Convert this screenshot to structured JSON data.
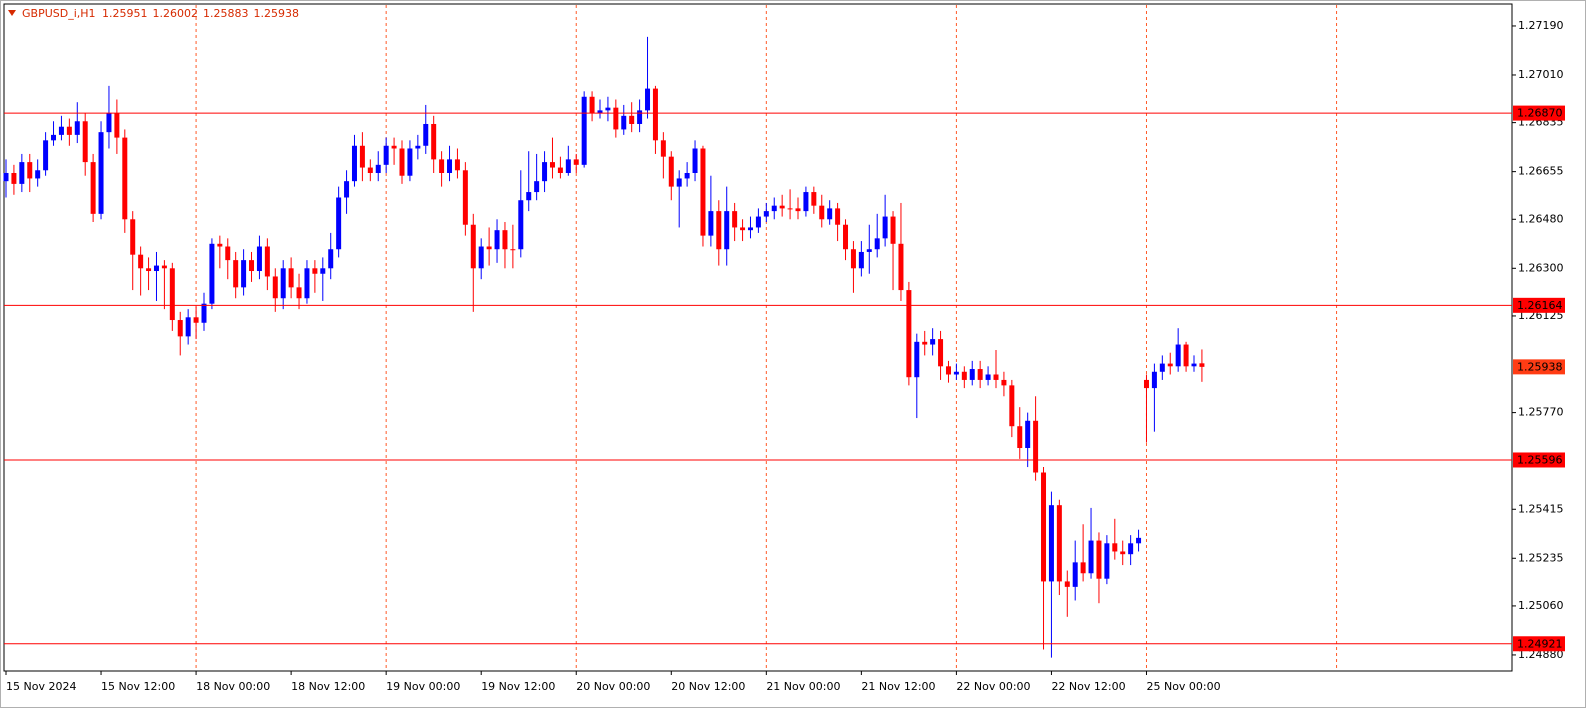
{
  "chart_data": {
    "type": "candlestick",
    "title": "GBPUSD_i,H1",
    "categories": [
      "15 Nov 2024",
      null,
      null,
      null,
      null,
      null,
      null,
      null,
      null,
      null,
      null,
      null,
      "15 Nov 12:00",
      null,
      null,
      null,
      null,
      null,
      null,
      null,
      null,
      null,
      null,
      null,
      "18 Nov 00:00",
      null,
      null,
      null,
      null,
      null,
      null,
      null,
      null,
      null,
      null,
      null,
      "18 Nov 12:00",
      null,
      null,
      null,
      null,
      null,
      null,
      null,
      null,
      null,
      null,
      null,
      "19 Nov 00:00",
      null,
      null,
      null,
      null,
      null,
      null,
      null,
      null,
      null,
      null,
      null,
      "19 Nov 12:00",
      null,
      null,
      null,
      null,
      null,
      null,
      null,
      null,
      null,
      null,
      null,
      "20 Nov 00:00",
      null,
      null,
      null,
      null,
      null,
      null,
      null,
      null,
      null,
      null,
      null,
      "20 Nov 12:00",
      null,
      null,
      null,
      null,
      null,
      null,
      null,
      null,
      null,
      null,
      null,
      "21 Nov 00:00",
      null,
      null,
      null,
      null,
      null,
      null,
      null,
      null,
      null,
      null,
      null,
      "21 Nov 12:00",
      null,
      null,
      null,
      null,
      null,
      null,
      null,
      null,
      null,
      null,
      null,
      "22 Nov 00:00",
      null,
      null,
      null,
      null,
      null,
      null,
      null,
      null,
      null,
      null,
      null,
      "22 Nov 12:00",
      null,
      null,
      null,
      null,
      null,
      null,
      null,
      null,
      null,
      null,
      null,
      "25 Nov 00:00",
      null,
      null,
      null,
      null,
      null,
      null,
      null
    ],
    "open": [
      1.2662,
      1.2665,
      1.2661,
      1.2669,
      1.2663,
      1.2666,
      1.2677,
      1.2679,
      1.2682,
      1.2679,
      1.2684,
      1.2669,
      1.265,
      1.268,
      1.2687,
      1.2678,
      1.2648,
      1.2635,
      1.263,
      1.2629,
      1.2631,
      1.263,
      1.2611,
      1.2605,
      1.2612,
      1.261,
      1.2617,
      1.2639,
      1.2638,
      1.2633,
      1.2623,
      1.2633,
      1.2629,
      1.2638,
      1.2627,
      1.2619,
      1.263,
      1.2623,
      1.2619,
      1.263,
      1.2628,
      1.263,
      1.2637,
      1.2656,
      1.2662,
      1.2675,
      1.2667,
      1.2665,
      1.2668,
      1.2675,
      1.2674,
      1.2664,
      1.2674,
      1.2675,
      1.2683,
      1.267,
      1.2665,
      1.267,
      1.2666,
      1.2646,
      1.263,
      1.2638,
      1.2637,
      1.2644,
      1.2637,
      1.2637,
      1.2655,
      1.2658,
      1.2662,
      1.2669,
      1.2667,
      1.2665,
      1.267,
      1.2668,
      1.2693,
      1.2687,
      1.2688,
      1.2689,
      1.2681,
      1.2686,
      1.2683,
      1.2688,
      1.2696,
      1.2677,
      1.2671,
      1.266,
      1.2663,
      1.2665,
      1.2674,
      1.2642,
      1.2651,
      1.2637,
      1.2651,
      1.2645,
      1.2644,
      1.2645,
      1.2649,
      1.2651,
      1.2653,
      1.2652,
      1.2652,
      1.2651,
      1.2658,
      1.2653,
      1.2648,
      1.2652,
      1.2646,
      1.2637,
      1.263,
      1.2636,
      1.2637,
      1.2641,
      1.2649,
      1.2639,
      1.2622,
      1.259,
      1.2603,
      1.2602,
      1.2604,
      1.2594,
      1.2591,
      1.2592,
      1.2589,
      1.2593,
      1.2589,
      1.2591,
      1.2589,
      1.2587,
      1.2572,
      1.2564,
      1.2574,
      1.2555,
      1.2515,
      1.2543,
      1.2515,
      1.2513,
      1.2522,
      1.2518,
      1.253,
      1.2516,
      1.2529,
      1.2526,
      1.2525,
      1.2529,
      1.2589,
      1.2586,
      1.2592,
      1.2595,
      1.2594,
      1.2602,
      1.2594,
      1.25951
    ],
    "high": [
      1.267,
      1.2668,
      1.2672,
      1.2672,
      1.267,
      1.268,
      1.2684,
      1.2686,
      1.2685,
      1.2691,
      1.2687,
      1.2672,
      1.2684,
      1.2697,
      1.2692,
      1.2681,
      1.2651,
      1.2638,
      1.2634,
      1.2636,
      1.2633,
      1.2632,
      1.2614,
      1.2615,
      1.2616,
      1.2621,
      1.2641,
      1.2642,
      1.2641,
      1.2636,
      1.2637,
      1.2636,
      1.2642,
      1.2641,
      1.263,
      1.2633,
      1.2634,
      1.2628,
      1.2633,
      1.2633,
      1.2634,
      1.2643,
      1.266,
      1.2666,
      1.2679,
      1.268,
      1.267,
      1.2673,
      1.2678,
      1.2678,
      1.2677,
      1.2677,
      1.2679,
      1.269,
      1.2686,
      1.2673,
      1.2675,
      1.2674,
      1.2669,
      1.265,
      1.2641,
      1.2645,
      1.2648,
      1.2647,
      1.2646,
      1.2666,
      1.2673,
      1.2672,
      1.2673,
      1.2678,
      1.2671,
      1.2675,
      1.2672,
      1.2695,
      1.2695,
      1.2692,
      1.2693,
      1.2692,
      1.269,
      1.2691,
      1.2692,
      1.2715,
      1.2697,
      1.268,
      1.2673,
      1.2666,
      1.2669,
      1.2677,
      1.2675,
      1.2664,
      1.2655,
      1.266,
      1.2654,
      1.2648,
      1.2649,
      1.2652,
      1.2654,
      1.2656,
      1.2657,
      1.2659,
      1.2656,
      1.266,
      1.266,
      1.2657,
      1.2655,
      1.2654,
      1.2648,
      1.264,
      1.264,
      1.2646,
      1.265,
      1.2657,
      1.2651,
      1.2654,
      1.2625,
      1.2606,
      1.2607,
      1.2608,
      1.2607,
      1.2596,
      1.2595,
      1.2594,
      1.2596,
      1.2596,
      1.2594,
      1.26,
      1.2592,
      1.2589,
      1.2579,
      1.2577,
      1.2583,
      1.2557,
      1.2548,
      1.2545,
      1.2519,
      1.253,
      1.2536,
      1.2542,
      1.2533,
      1.2532,
      1.2538,
      1.253,
      1.2532,
      1.2534,
      1.2591,
      1.2595,
      1.2598,
      1.2599,
      1.2608,
      1.2603,
      1.2598,
      1.26002
    ],
    "low": [
      1.2656,
      1.2657,
      1.2658,
      1.2658,
      1.266,
      1.2664,
      1.2675,
      1.2677,
      1.2675,
      1.2676,
      1.2664,
      1.2647,
      1.2648,
      1.2674,
      1.2672,
      1.2643,
      1.2622,
      1.262,
      1.2622,
      1.2618,
      1.2615,
      1.2607,
      1.2598,
      1.2602,
      1.2604,
      1.2607,
      1.2615,
      1.263,
      1.2626,
      1.2619,
      1.262,
      1.2625,
      1.2626,
      1.2622,
      1.2614,
      1.2615,
      1.2619,
      1.2615,
      1.2617,
      1.2621,
      1.2618,
      1.2626,
      1.2634,
      1.265,
      1.266,
      1.2662,
      1.2662,
      1.2662,
      1.2665,
      1.2668,
      1.2661,
      1.2662,
      1.267,
      1.2672,
      1.2665,
      1.266,
      1.2662,
      1.2663,
      1.2642,
      1.2614,
      1.2626,
      1.2631,
      1.2632,
      1.263,
      1.263,
      1.2634,
      1.2651,
      1.2655,
      1.2658,
      1.2663,
      1.2663,
      1.2664,
      1.2665,
      1.2667,
      1.2684,
      1.2685,
      1.2684,
      1.2678,
      1.2679,
      1.268,
      1.268,
      1.2685,
      1.2672,
      1.2663,
      1.2655,
      1.2645,
      1.266,
      1.2662,
      1.2638,
      1.2638,
      1.2631,
      1.2631,
      1.264,
      1.264,
      1.2641,
      1.2643,
      1.2647,
      1.2648,
      1.2649,
      1.2648,
      1.2648,
      1.2649,
      1.265,
      1.2645,
      1.2646,
      1.264,
      1.2633,
      1.2621,
      1.2627,
      1.2628,
      1.2634,
      1.2638,
      1.2622,
      1.2618,
      1.2587,
      1.2575,
      1.2598,
      1.2598,
      1.2589,
      1.2588,
      1.2589,
      1.2586,
      1.2587,
      1.2586,
      1.2587,
      1.2586,
      1.2583,
      1.2568,
      1.256,
      1.2557,
      1.2552,
      1.249,
      1.2487,
      1.251,
      1.2502,
      1.2508,
      1.2515,
      1.2516,
      1.2507,
      1.2514,
      1.2523,
      1.2521,
      1.2521,
      1.2526,
      1.2566,
      1.257,
      1.2589,
      1.2591,
      1.2592,
      1.2592,
      1.2592,
      1.25883
    ],
    "close": [
      1.2665,
      1.2661,
      1.2669,
      1.2663,
      1.2666,
      1.2677,
      1.2679,
      1.2682,
      1.2679,
      1.2684,
      1.2669,
      1.265,
      1.268,
      1.2687,
      1.2678,
      1.2648,
      1.2635,
      1.263,
      1.2629,
      1.2631,
      1.263,
      1.2611,
      1.2605,
      1.2612,
      1.261,
      1.2617,
      1.2639,
      1.2638,
      1.2633,
      1.2623,
      1.2633,
      1.2629,
      1.2638,
      1.2627,
      1.2619,
      1.263,
      1.2623,
      1.2619,
      1.263,
      1.2628,
      1.263,
      1.2637,
      1.2656,
      1.2662,
      1.2675,
      1.2667,
      1.2665,
      1.2668,
      1.2675,
      1.2674,
      1.2664,
      1.2674,
      1.2675,
      1.2683,
      1.267,
      1.2665,
      1.267,
      1.2666,
      1.2646,
      1.263,
      1.2638,
      1.2637,
      1.2644,
      1.2637,
      1.2637,
      1.2655,
      1.2658,
      1.2662,
      1.2669,
      1.2667,
      1.2665,
      1.267,
      1.2668,
      1.2693,
      1.2687,
      1.2688,
      1.2689,
      1.2681,
      1.2686,
      1.2683,
      1.2688,
      1.2696,
      1.2677,
      1.2671,
      1.266,
      1.2663,
      1.2665,
      1.2674,
      1.2642,
      1.2651,
      1.2637,
      1.2651,
      1.2645,
      1.2644,
      1.2645,
      1.2649,
      1.2651,
      1.2653,
      1.2652,
      1.2652,
      1.2651,
      1.2658,
      1.2653,
      1.2648,
      1.2652,
      1.2646,
      1.2637,
      1.263,
      1.2636,
      1.2637,
      1.2641,
      1.2649,
      1.2639,
      1.2622,
      1.259,
      1.2603,
      1.2602,
      1.2604,
      1.2594,
      1.2591,
      1.2592,
      1.2589,
      1.2593,
      1.2589,
      1.2591,
      1.2589,
      1.2587,
      1.2572,
      1.2564,
      1.2574,
      1.2555,
      1.2515,
      1.2543,
      1.2515,
      1.2513,
      1.2522,
      1.2518,
      1.253,
      1.2516,
      1.2529,
      1.2526,
      1.2525,
      1.2529,
      1.2531,
      1.2586,
      1.2592,
      1.2595,
      1.2594,
      1.2602,
      1.2594,
      1.2595,
      1.25938
    ],
    "up_color": "#0000ff",
    "down_color": "#ff0000",
    "ylim": [
      1.24821,
      1.27267
    ],
    "yticks": [
      {
        "value": 1.2719,
        "label": "1.27190"
      },
      {
        "value": 1.2701,
        "label": "1.27010"
      },
      1.26835,
      1.26655,
      {
        "value": 1.2648,
        "label": "1.26480"
      },
      {
        "value": 1.263,
        "label": "1.26300"
      },
      1.26125,
      {
        "value": 1.2577,
        "label": "1.25770"
      },
      1.25415,
      1.25235,
      {
        "value": 1.2506,
        "label": "1.25060"
      },
      {
        "value": 1.2488,
        "label": "1.24880"
      }
    ],
    "levels": [
      {
        "value": 1.2687,
        "label": "1.26870"
      },
      1.26164,
      1.25596,
      1.24921
    ],
    "level_color": "#ff0000",
    "price_color": "#ff3c14",
    "grid": true,
    "grid_color": "#ff5a28"
  }
}
